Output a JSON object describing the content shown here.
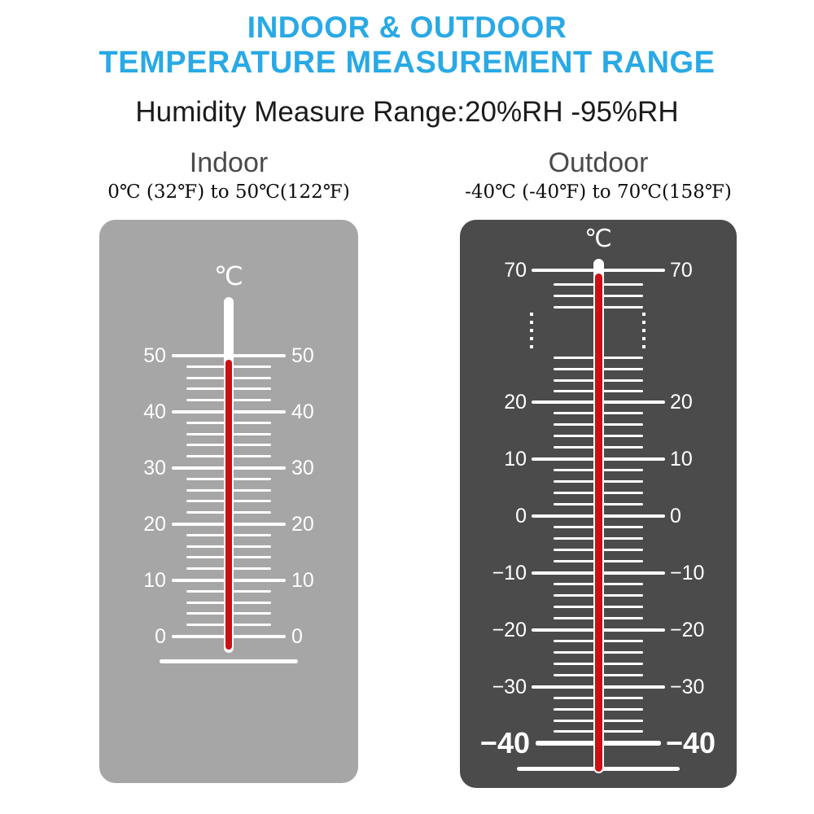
{
  "header": {
    "title_line1": "INDOOR & OUTDOOR",
    "title_line2": "TEMPERATURE MEASUREMENT RANGE",
    "humidity_line": "Humidity Measure Range:20%RH -95%RH"
  },
  "indoor": {
    "heading": "Indoor",
    "range_text": "0℃ (32℉) to 50℃(122℉)",
    "unit": "℃",
    "scale_labels": [
      "50",
      "40",
      "30",
      "20",
      "10",
      "0"
    ]
  },
  "outdoor": {
    "heading": "Outdoor",
    "range_text": "-40℃ (-40℉) to 70℃(158℉)",
    "unit": "℃",
    "top_label": "70",
    "scale_labels": [
      "20",
      "10",
      "0",
      "−10",
      "−20",
      "−30"
    ],
    "bottom_label": "−40"
  },
  "colors": {
    "title_blue": "#29A9E5",
    "indoor_panel": "#A6A6A6",
    "outdoor_panel": "#4B4B4B",
    "mercury_red": "#CC0F14",
    "tick_white": "#FFFFFF"
  }
}
